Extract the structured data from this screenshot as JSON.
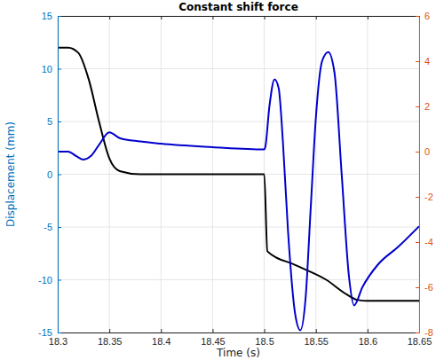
{
  "chart_data": {
    "type": "line",
    "title": "Constant shift force",
    "x_label": "Time (s)",
    "y_label": "Displacement (mm)",
    "xlim": [
      18.3,
      18.65
    ],
    "xticks": [
      18.3,
      18.35,
      18.4,
      18.45,
      18.5,
      18.55,
      18.6,
      18.65
    ],
    "ylim": [
      -15,
      15
    ],
    "yticks": [
      -15,
      -10,
      -5,
      0,
      5,
      10,
      15
    ],
    "y2lim": [
      -8,
      6
    ],
    "y2ticks": [
      -8,
      -6,
      -4,
      -2,
      0,
      2,
      4,
      6
    ],
    "grid": true,
    "series": [
      {
        "color": "#000000",
        "x": [
          18.3,
          18.31,
          18.32,
          18.33,
          18.34,
          18.35,
          18.36,
          18.38,
          18.5,
          18.503,
          18.53,
          18.56,
          18.58,
          18.59,
          18.6,
          18.65
        ],
        "values": [
          12,
          12,
          11.5,
          9,
          5,
          1.5,
          0.3,
          0,
          0,
          -7.3,
          -8.6,
          -10,
          -11.4,
          -11.9,
          -12,
          -12
        ]
      },
      {
        "color": "#0000cc",
        "axis": "y2",
        "x": [
          18.3,
          18.31,
          18.318,
          18.325,
          18.332,
          18.34,
          18.35,
          18.36,
          18.38,
          18.4,
          18.45,
          18.5,
          18.501,
          18.505,
          18.51,
          18.514,
          18.518,
          18.523,
          18.53,
          18.535,
          18.54,
          18.545,
          18.55,
          18.556,
          18.562,
          18.568,
          18.575,
          18.582,
          18.587,
          18.595,
          18.61,
          18.63,
          18.65
        ],
        "values": [
          0,
          0,
          -0.2,
          -0.35,
          -0.2,
          0.3,
          0.85,
          0.6,
          0.45,
          0.35,
          0.2,
          0.1,
          0.2,
          2.0,
          3.2,
          2.8,
          0.5,
          -3.5,
          -7.2,
          -7.9,
          -6.5,
          -2.5,
          1.5,
          4.0,
          4.4,
          3.5,
          -1,
          -5.5,
          -6.8,
          -6.0,
          -5.0,
          -4.2,
          -3.3
        ]
      }
    ]
  }
}
